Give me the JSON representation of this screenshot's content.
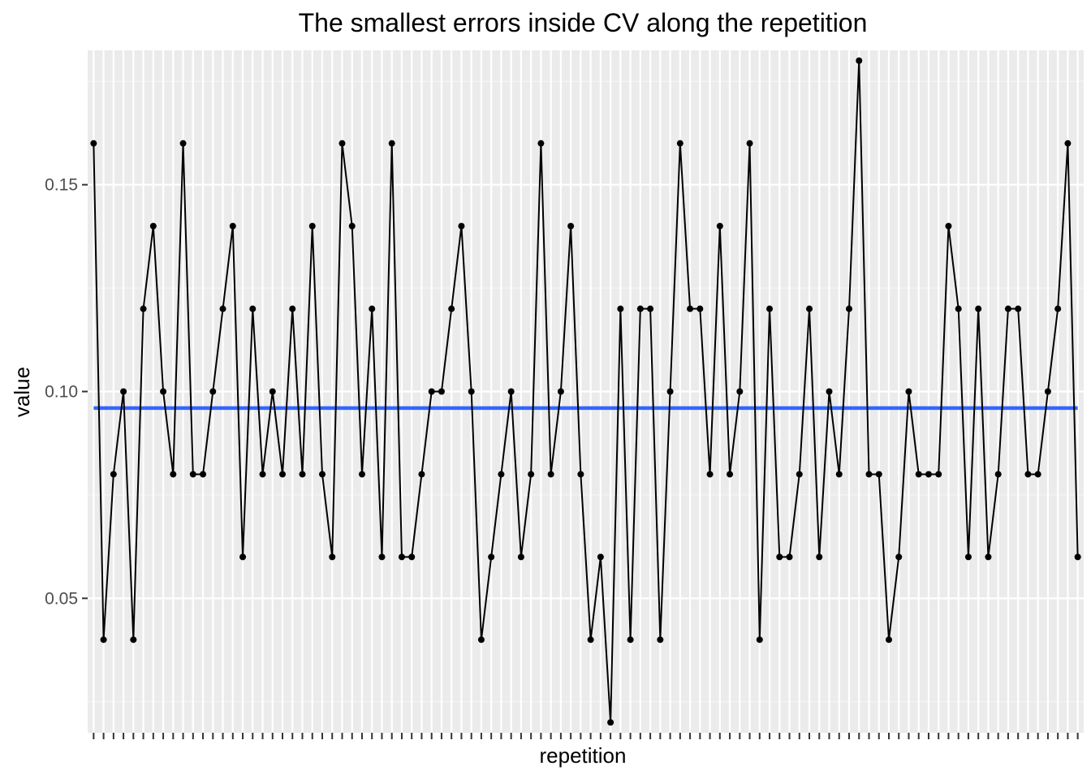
{
  "chart_data": {
    "type": "line",
    "title": "The smallest errors inside CV along the repetition",
    "xlabel": "repetition",
    "ylabel": "value",
    "ylim": [
      0.0175,
      0.1825
    ],
    "y_ticks": [
      0.05,
      0.1,
      0.15
    ],
    "y_tick_labels": [
      "0.05",
      "0.10",
      "0.15"
    ],
    "grid": true,
    "x_tick_labels_shown": false,
    "series": [
      {
        "color": "#000000",
        "markers": true,
        "values": [
          0.16,
          0.04,
          0.08,
          0.1,
          0.04,
          0.12,
          0.14,
          0.1,
          0.08,
          0.16,
          0.08,
          0.08,
          0.1,
          0.12,
          0.14,
          0.06,
          0.12,
          0.08,
          0.1,
          0.08,
          0.12,
          0.08,
          0.14,
          0.08,
          0.06,
          0.16,
          0.14,
          0.08,
          0.12,
          0.06,
          0.16,
          0.06,
          0.06,
          0.08,
          0.1,
          0.1,
          0.12,
          0.14,
          0.1,
          0.04,
          0.06,
          0.08,
          0.1,
          0.06,
          0.08,
          0.16,
          0.08,
          0.1,
          0.14,
          0.08,
          0.04,
          0.06,
          0.02,
          0.12,
          0.04,
          0.12,
          0.12,
          0.04,
          0.1,
          0.16,
          0.12,
          0.12,
          0.08,
          0.14,
          0.08,
          0.1,
          0.16,
          0.04,
          0.12,
          0.06,
          0.06,
          0.08,
          0.12,
          0.06,
          0.1,
          0.08,
          0.12,
          0.18,
          0.08,
          0.08,
          0.04,
          0.06,
          0.1,
          0.08,
          0.08,
          0.08,
          0.14,
          0.12,
          0.06,
          0.12,
          0.06,
          0.08,
          0.12,
          0.12,
          0.08,
          0.08,
          0.1,
          0.12,
          0.16,
          0.06
        ]
      }
    ],
    "mean_line": {
      "value": 0.096,
      "color": "#3366FF"
    },
    "colors": {
      "panel_background": "#EBEBEB",
      "grid_major": "#FFFFFF",
      "grid_minor": "#F5F5F5",
      "tick_mark": "#333333"
    }
  }
}
